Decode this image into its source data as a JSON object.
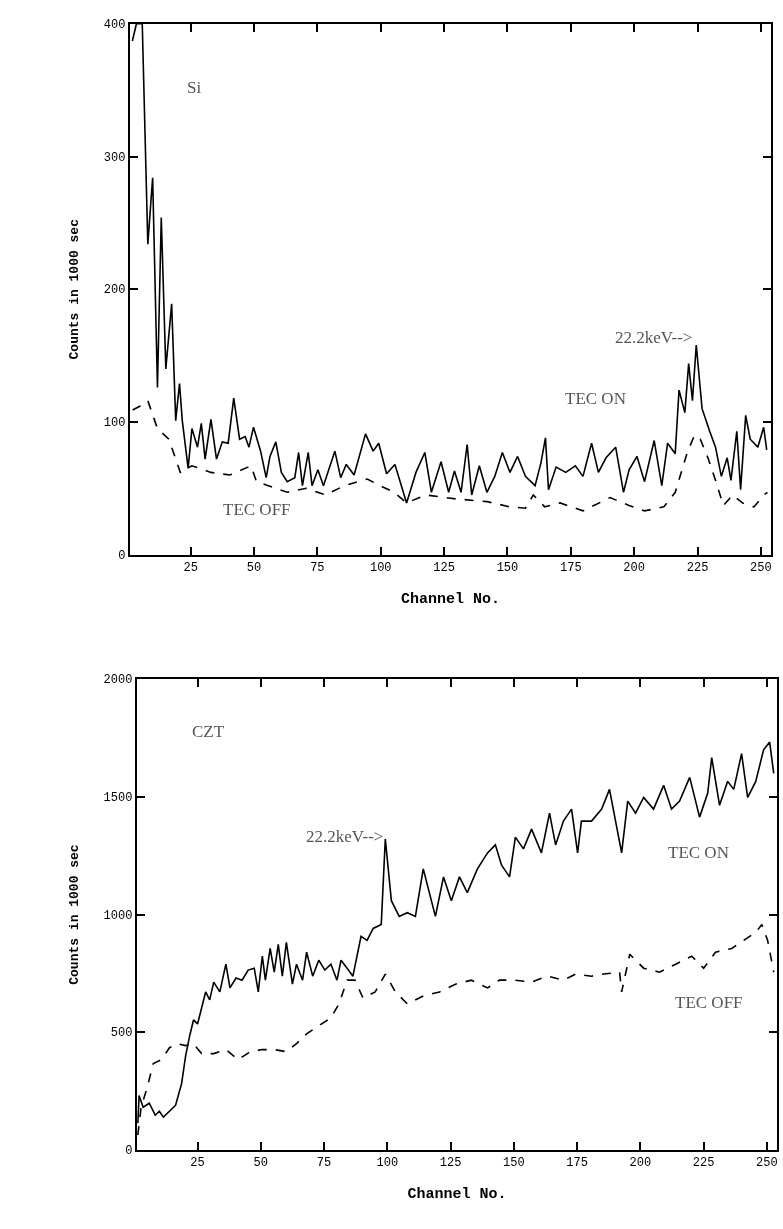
{
  "chart_data": [
    {
      "type": "line",
      "xlabel": "Channel No.",
      "ylabel": "Counts in 1000 sec",
      "xlim": [
        1,
        254
      ],
      "ylim": [
        0,
        400
      ],
      "xticks": [
        25,
        50,
        75,
        100,
        125,
        150,
        175,
        200,
        225,
        250
      ],
      "yticks": [
        0,
        100,
        200,
        300,
        400
      ],
      "annotations": [
        "Si",
        "22.2keV-->",
        "TEC ON",
        "TEC OFF"
      ],
      "series": [
        {
          "color": "#000000",
          "line_style": "solid",
          "x": [
            2,
            3.6,
            5.9,
            8.1,
            10,
            11.9,
            13.4,
            15.2,
            17.5,
            19.1,
            20.6,
            21.7,
            24,
            25.5,
            27.7,
            29.2,
            30.7,
            33,
            35.2,
            37.5,
            39.8,
            42,
            44.3,
            46.5,
            48,
            49.8,
            52.6,
            54.8,
            56.3,
            58.6,
            60.8,
            63.1,
            66.1,
            67.6,
            69.1,
            71.4,
            72.9,
            75.2,
            77.4,
            81.9,
            84.2,
            86.4,
            89.5,
            94,
            97,
            99.2,
            102.3,
            105.6,
            110.2,
            113.9,
            117.4,
            120,
            123.8,
            126.8,
            129.1,
            131.7,
            134.1,
            135.9,
            138.9,
            141.9,
            145,
            148,
            151,
            154,
            157.1,
            160.9,
            163.2,
            165,
            166.2,
            169.2,
            173,
            176.8,
            179.8,
            183.2,
            185.9,
            188.9,
            192.7,
            195.8,
            198,
            201.1,
            204.1,
            207.9,
            210.9,
            213.2,
            216.2,
            217.7,
            220,
            221.5,
            223,
            224.5,
            226.8,
            229.8,
            232.1,
            234.4,
            236.7,
            238.2,
            240.5,
            242,
            244,
            245.8,
            248.8,
            251.1,
            252.3
          ],
          "values": [
            387,
            400,
            400,
            234,
            284,
            126,
            254,
            140,
            189,
            101,
            129,
            101,
            65,
            95,
            81,
            99,
            72,
            102,
            72,
            85,
            84,
            118,
            87,
            89,
            81,
            96,
            78,
            58,
            74,
            85,
            62,
            55,
            58,
            77,
            52,
            77,
            52,
            64,
            52,
            78,
            58,
            68,
            60,
            91,
            78,
            84,
            61,
            68,
            39,
            62,
            77,
            47,
            70,
            47,
            63,
            47,
            83,
            45,
            67,
            47,
            59,
            77,
            62,
            74,
            59,
            52,
            69,
            88,
            49,
            66,
            62,
            67,
            59,
            84,
            62,
            73,
            81,
            47,
            64,
            74,
            55,
            86,
            52,
            84,
            76,
            124,
            107,
            144,
            116,
            158,
            110,
            93,
            81,
            59,
            73,
            56,
            93,
            49,
            105,
            87,
            81,
            96,
            79
          ]
        },
        {
          "color": "#000000",
          "line_style": "dashed",
          "x": [
            2.1,
            5.1,
            8.1,
            11.9,
            16.4,
            20.9,
            25.5,
            33,
            40.5,
            48.8,
            51,
            55.6,
            63.1,
            70.6,
            78.2,
            85.7,
            94.7,
            100.8,
            105.3,
            110.2,
            117.7,
            129.8,
            141.9,
            151,
            157.1,
            160.2,
            164.7,
            170.8,
            179.8,
            190.5,
            198,
            204.1,
            211.7,
            216.2,
            220.8,
            223.8,
            226.1,
            229.1,
            232.1,
            235.2,
            238.9,
            242.7,
            247.3,
            251.1,
            252.6
          ],
          "values": [
            109,
            112,
            116,
            95,
            87,
            62,
            67,
            62,
            60,
            67,
            55,
            52,
            47,
            50,
            45,
            52,
            57,
            51,
            47,
            39,
            45,
            42,
            40,
            36,
            35,
            45,
            36,
            39,
            33,
            43,
            37,
            33,
            36,
            47,
            76,
            90,
            87,
            73,
            56,
            37,
            45,
            39,
            36,
            45,
            47
          ]
        }
      ]
    },
    {
      "type": "line",
      "xlabel": "Channel No.",
      "ylabel": "Counts in 1000 sec",
      "xlim": [
        1,
        254
      ],
      "ylim": [
        0,
        2000
      ],
      "xticks": [
        25,
        50,
        75,
        100,
        125,
        150,
        175,
        200,
        225,
        250
      ],
      "yticks": [
        0,
        500,
        1000,
        1500,
        2000
      ],
      "annotations": [
        "CZT",
        "22.2keV-->",
        "TEC ON",
        "TEC OFF"
      ],
      "series": [
        {
          "color": "#000000",
          "line_style": "solid",
          "x": [
            1.4,
            1.9,
            3.5,
            5.9,
            8.3,
            9.9,
            11.5,
            13.9,
            16.3,
            18.7,
            20.3,
            21.9,
            23.4,
            25,
            26.6,
            28.2,
            29.8,
            31.4,
            33.8,
            36.2,
            37.8,
            40.2,
            42.6,
            45,
            47.4,
            49,
            50.6,
            51.8,
            53.7,
            55.3,
            56.9,
            58.5,
            60.1,
            62.5,
            64.1,
            66.5,
            68.1,
            70.5,
            72.9,
            75.3,
            77.7,
            80.1,
            81.7,
            84.1,
            86.4,
            89.6,
            92,
            94.4,
            97.6,
            99.2,
            101.6,
            104.7,
            107.9,
            111.1,
            114.2,
            119,
            122.2,
            125.3,
            128.5,
            131.6,
            135.6,
            139.6,
            142.7,
            145.1,
            148.3,
            150.6,
            153.8,
            157,
            160.9,
            164.1,
            166.5,
            169.6,
            172.8,
            175.2,
            176.7,
            180.7,
            184.7,
            187.8,
            190.2,
            192.6,
            195,
            198.1,
            201.3,
            205.2,
            209.2,
            212.3,
            215.5,
            219.5,
            223.4,
            226.6,
            228.2,
            231.3,
            234.5,
            236.9,
            240,
            242.4,
            245.6,
            248.7,
            251.1,
            252.7
          ],
          "values": [
            113,
            231,
            181,
            198,
            147,
            164,
            139,
            164,
            189,
            282,
            400,
            485,
            552,
            535,
            603,
            671,
            637,
            713,
            671,
            789,
            688,
            730,
            721,
            764,
            772,
            671,
            823,
            721,
            856,
            755,
            873,
            738,
            882,
            704,
            789,
            721,
            840,
            738,
            806,
            764,
            789,
            721,
            806,
            772,
            738,
            907,
            890,
            941,
            958,
            1321,
            1059,
            992,
            1008,
            992,
            1194,
            992,
            1160,
            1059,
            1160,
            1093,
            1194,
            1262,
            1296,
            1211,
            1160,
            1329,
            1279,
            1363,
            1262,
            1431,
            1296,
            1397,
            1448,
            1262,
            1397,
            1397,
            1448,
            1532,
            1397,
            1262,
            1482,
            1431,
            1498,
            1448,
            1549,
            1448,
            1482,
            1583,
            1414,
            1515,
            1667,
            1464,
            1566,
            1532,
            1684,
            1498,
            1566,
            1700,
            1733,
            1600
          ]
        },
        {
          "color": "#000000",
          "line_style": "dashed",
          "x": [
            1.4,
            2.7,
            5.1,
            7.5,
            10.7,
            13.9,
            17.1,
            20.3,
            23.4,
            26.6,
            31.4,
            36.2,
            41,
            45.8,
            50.6,
            55.3,
            60.1,
            64.1,
            68.1,
            72.9,
            77.7,
            80.9,
            84.1,
            87.2,
            90.4,
            95.2,
            99.2,
            103.2,
            107.9,
            114.2,
            120.6,
            126.9,
            133.2,
            139.6,
            144.3,
            150.6,
            157,
            163.3,
            169.6,
            174.4,
            180.7,
            185.4,
            191.8,
            192.6,
            195.8,
            201.3,
            207.6,
            214,
            220.3,
            225,
            229.7,
            236.1,
            240.8,
            245.6,
            248,
            250.3,
            252.7
          ],
          "values": [
            63,
            181,
            265,
            367,
            383,
            434,
            451,
            443,
            451,
            409,
            409,
            426,
            383,
            417,
            426,
            426,
            417,
            451,
            493,
            527,
            561,
            620,
            721,
            721,
            645,
            671,
            747,
            671,
            620,
            654,
            671,
            704,
            721,
            688,
            721,
            721,
            713,
            738,
            721,
            747,
            738,
            747,
            755,
            671,
            831,
            772,
            755,
            789,
            823,
            772,
            840,
            856,
            890,
            924,
            958,
            890,
            755
          ]
        }
      ]
    }
  ]
}
